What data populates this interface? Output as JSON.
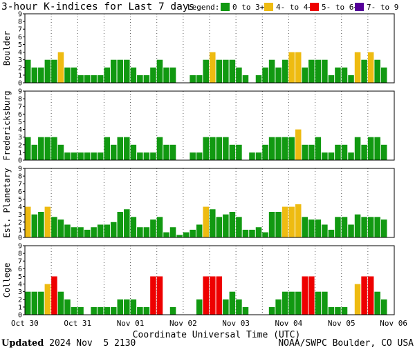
{
  "header": {
    "title": "3-hour K-indices for Last 7 days",
    "legend_label": "Legend:"
  },
  "legend": [
    {
      "label": "0 to 3+",
      "color": "#119911"
    },
    {
      "label": "4- to 4+",
      "color": "#eebb11"
    },
    {
      "label": "5- to 6+",
      "color": "#ee0000"
    },
    {
      "label": "7- to 9",
      "color": "#550099"
    }
  ],
  "footer": {
    "updated_label": "Updated",
    "updated_value": "2024 Nov  5 2130",
    "source": "NOAA/SWPC Boulder, CO USA"
  },
  "chart_data": {
    "type": "bar",
    "xlabel": "Coordinate Universal Time (UTC)",
    "x_tick_labels": [
      "Oct 30",
      "Oct 31",
      "Nov 01",
      "Nov 02",
      "Nov 03",
      "Nov 04",
      "Nov 05",
      "Nov 06"
    ],
    "y_tick_labels": [
      "0",
      "1",
      "2",
      "3",
      "4",
      "5",
      "6",
      "7",
      "8",
      "9"
    ],
    "ylim": [
      0,
      9
    ],
    "bars_per_day": 8,
    "color_thresholds": [
      {
        "min": 0,
        "max": 3.99,
        "color": "#119911"
      },
      {
        "min": 4,
        "max": 4.99,
        "color": "#eebb11"
      },
      {
        "min": 5,
        "max": 6.99,
        "color": "#ee0000"
      },
      {
        "min": 7,
        "max": 9,
        "color": "#550099"
      }
    ],
    "grid": "dotted vertical lines at day boundaries and mid-days",
    "series": [
      {
        "name": "Boulder",
        "values": [
          3,
          2,
          2,
          3,
          3,
          4,
          2,
          2,
          1,
          1,
          1,
          1,
          2,
          3,
          3,
          3,
          2,
          1,
          1,
          2,
          3,
          2,
          2,
          0,
          0,
          1,
          1,
          3,
          4,
          3,
          3,
          3,
          2,
          1,
          0,
          1,
          2,
          3,
          2,
          3,
          4,
          4,
          2,
          3,
          3,
          3,
          1,
          2,
          2,
          1,
          4,
          3,
          4,
          3,
          2,
          0
        ]
      },
      {
        "name": "Fredericksburg",
        "values": [
          3,
          2,
          3,
          3,
          3,
          2,
          1,
          1,
          1,
          1,
          1,
          1,
          3,
          2,
          3,
          3,
          2,
          1,
          1,
          1,
          3,
          2,
          2,
          0,
          0,
          1,
          1,
          3,
          3,
          3,
          3,
          2,
          2,
          0,
          1,
          1,
          2,
          3,
          3,
          3,
          3,
          4,
          2,
          2,
          3,
          1,
          1,
          2,
          2,
          1,
          3,
          2,
          3,
          3,
          2,
          0
        ]
      },
      {
        "name": "Est. Planetary",
        "values": [
          4,
          3,
          3.33,
          4,
          2.67,
          2.33,
          1.67,
          1.33,
          1.33,
          1,
          1.33,
          1.67,
          1.67,
          2,
          3.33,
          3.67,
          2.67,
          1.33,
          1.33,
          2.33,
          2.67,
          0.67,
          1.33,
          0.33,
          0.67,
          1,
          1.67,
          4,
          3.67,
          2.67,
          3,
          3.33,
          2.67,
          1,
          1,
          1.33,
          0.67,
          3.33,
          3.33,
          4,
          4,
          4.33,
          2.67,
          2.33,
          2.33,
          1.67,
          1,
          2.67,
          2.67,
          1.67,
          3,
          2.67,
          2.67,
          2.67,
          2.33,
          0
        ]
      },
      {
        "name": "College",
        "values": [
          3,
          3,
          3,
          4,
          5,
          3,
          2,
          1,
          1,
          0,
          1,
          1,
          1,
          1,
          2,
          2,
          2,
          1,
          1,
          5,
          5,
          0,
          1,
          0,
          0,
          0,
          2,
          5,
          5,
          5,
          2,
          3,
          2,
          1,
          0,
          0,
          0,
          1,
          2,
          3,
          3,
          3,
          5,
          5,
          3,
          3,
          1,
          1,
          1,
          0,
          4,
          5,
          5,
          3,
          2,
          0
        ]
      }
    ]
  }
}
